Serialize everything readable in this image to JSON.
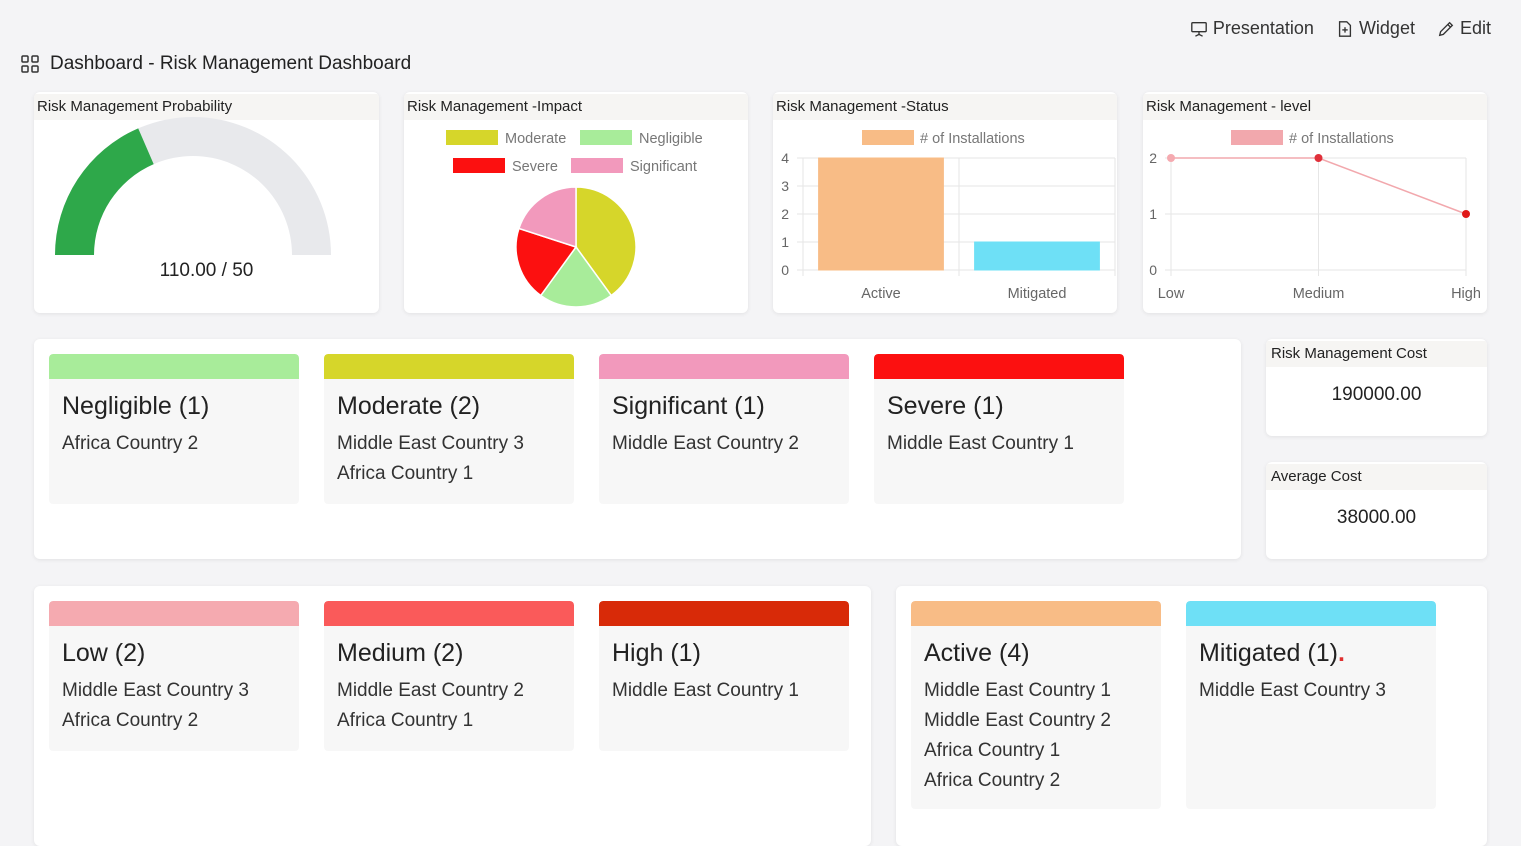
{
  "toolbar": {
    "presentation_label": "Presentation",
    "widget_label": "Widget",
    "edit_label": "Edit"
  },
  "page": {
    "title": "Dashboard - Risk Management Dashboard"
  },
  "probability": {
    "title": "Risk Management Probability",
    "value_text": "110.00 / 50",
    "fill_fraction": 0.37,
    "fill_color": "#2ea84a",
    "track_color": "#e8e9ec"
  },
  "impact": {
    "title": "Risk Management -Impact",
    "chart_data": {
      "type": "pie",
      "legend": [
        {
          "name": "Moderate",
          "color": "#d6d62a"
        },
        {
          "name": "Negligible",
          "color": "#a8ec9a"
        },
        {
          "name": "Severe",
          "color": "#fc1010"
        },
        {
          "name": "Significant",
          "color": "#f299bc"
        }
      ],
      "slices": [
        {
          "name": "Moderate",
          "value": 2,
          "color": "#d6d62a"
        },
        {
          "name": "Negligible",
          "value": 1,
          "color": "#a8ec9a"
        },
        {
          "name": "Severe",
          "value": 1,
          "color": "#fc1010"
        },
        {
          "name": "Significant",
          "value": 1,
          "color": "#f299bc"
        }
      ],
      "legend_position": "top"
    }
  },
  "status": {
    "title": "Risk Management -Status",
    "chart_data": {
      "type": "bar",
      "series_label": "# of Installations",
      "categories": [
        "Active",
        "Mitigated"
      ],
      "values": [
        4,
        1
      ],
      "colors": [
        "#f8bc86",
        "#6ee0f6"
      ],
      "ylim": [
        0,
        4
      ],
      "yticks": [
        "0",
        "1",
        "2",
        "3",
        "4"
      ],
      "grid": true,
      "legend_position": "top"
    }
  },
  "level": {
    "title": "Risk Management - level",
    "chart_data": {
      "type": "line",
      "series_label": "# of Installations",
      "categories": [
        "Low",
        "Medium",
        "High"
      ],
      "values": [
        2,
        2,
        1
      ],
      "line_color": "#f2a8ad",
      "point_colors": [
        "#f5aab0",
        "#e0303a",
        "#e01818"
      ],
      "ylim": [
        0,
        2
      ],
      "yticks": [
        "0",
        "1",
        "2"
      ],
      "grid": true,
      "legend_position": "top"
    }
  },
  "impact_tiles": [
    {
      "title": "Negligible (1)",
      "color": "#a8ec9a",
      "items": [
        "Africa Country 2"
      ]
    },
    {
      "title": "Moderate (2)",
      "color": "#d6d62a",
      "items": [
        "Middle East Country 3",
        "Africa Country 1"
      ]
    },
    {
      "title": "Significant (1)",
      "color": "#f299bc",
      "items": [
        "Middle East Country 2"
      ]
    },
    {
      "title": "Severe (1)",
      "color": "#fc1010",
      "items": [
        "Middle East Country 1"
      ]
    }
  ],
  "cost": {
    "title": "Risk Management Cost",
    "value": "190000.00"
  },
  "avg_cost": {
    "title": "Average Cost",
    "value": "38000.00"
  },
  "level_tiles": [
    {
      "title": "Low (2)",
      "color": "#f5aab0",
      "items": [
        "Middle East Country 3",
        "Africa Country 2"
      ]
    },
    {
      "title": "Medium (2)",
      "color": "#fa5a5a",
      "items": [
        "Middle East Country 2",
        "Africa Country 1"
      ]
    },
    {
      "title": "High (1)",
      "color": "#d82a08",
      "items": [
        "Middle East Country 1"
      ]
    }
  ],
  "status_tiles": [
    {
      "title": "Active (4)",
      "color": "#f8bc86",
      "items": [
        "Middle East Country 1",
        "Middle East Country 2",
        "Africa Country 1",
        "Africa Country 2"
      ]
    },
    {
      "title": "Mitigated (1)",
      "color": "#6ee0f6",
      "items": [
        "Middle East Country 3"
      ],
      "marker": "."
    }
  ]
}
